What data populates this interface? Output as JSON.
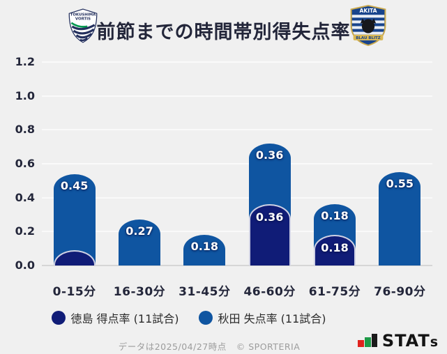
{
  "page": {
    "background": "#f0f0f0"
  },
  "header": {
    "title": "前節までの時間帯別得失点率",
    "left_logo": {
      "line1": "TOKUSHIMA",
      "line2": "VORTIS"
    },
    "right_logo": {
      "line1": "AKITA",
      "line2": "BLAU BLITZ"
    }
  },
  "chart_data": {
    "type": "bar",
    "stacked": true,
    "title": "前節までの時間帯別得失点率",
    "categories": [
      "0-15分",
      "16-30分",
      "31-45分",
      "46-60分",
      "61-75分",
      "76-90分"
    ],
    "series": [
      {
        "name": "徳島 得点率 (11試合)",
        "color": "#101c77",
        "values": [
          0.09,
          0,
          0,
          0.36,
          0.18,
          0
        ],
        "labels": [
          "",
          "",
          "",
          "0.36",
          "0.18",
          ""
        ]
      },
      {
        "name": "秋田 失点率 (11試合)",
        "color": "#0f55a1",
        "values": [
          0.45,
          0.27,
          0.18,
          0.36,
          0.18,
          0.55
        ],
        "labels": [
          "0.45",
          "0.27",
          "0.18",
          "0.36",
          "0.18",
          "0.55"
        ]
      }
    ],
    "ylim": [
      0,
      1.2
    ],
    "yticks": [
      "0.0",
      "0.2",
      "0.4",
      "0.6",
      "0.8",
      "1.0",
      "1.2"
    ],
    "grid": true,
    "legend_position": "bottom"
  },
  "footer": {
    "note": "データは2025/04/27時点",
    "copyright": "© SPORTERIA",
    "brand_main": "STAT",
    "brand_small": "s"
  }
}
